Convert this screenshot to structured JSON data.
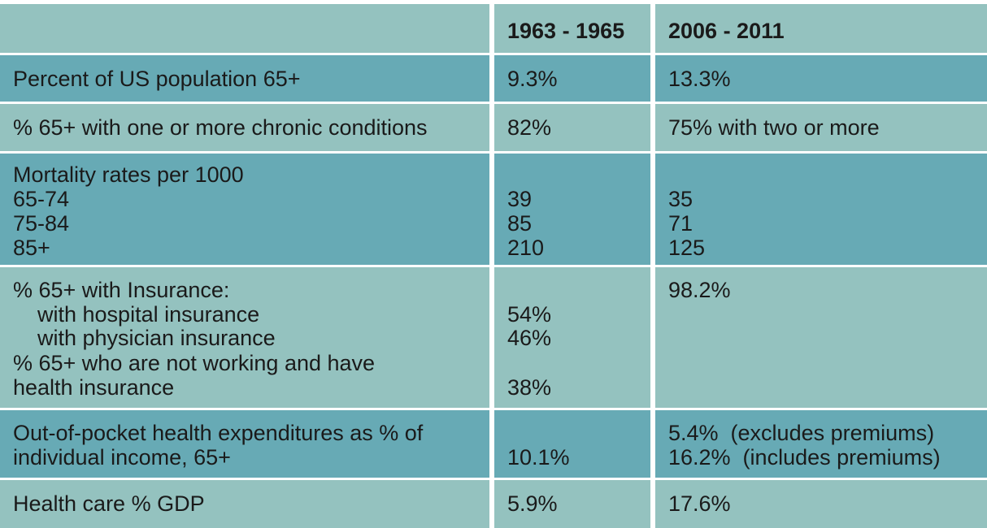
{
  "table": {
    "header": [
      "1963 - 1965",
      "2006 - 2011"
    ],
    "rows": [
      [
        [
          "Percent of US population 65+"
        ],
        [
          "9.3%"
        ],
        [
          "13.3%"
        ]
      ],
      [
        [
          "% 65+ with one or more chronic conditions"
        ],
        [
          "82%"
        ],
        [
          "75% with two or more"
        ]
      ],
      [
        [
          "Mortality rates per 1000",
          "65-74",
          "75-84",
          "85+"
        ],
        [
          "39",
          "85",
          "210"
        ],
        [
          "35",
          "71",
          "125"
        ]
      ],
      [
        [
          "% 65+ with Insurance:",
          "with hospital insurance",
          "with physician insurance",
          "% 65+ who are not working and have",
          "health insurance"
        ],
        [
          "54%",
          "46%",
          "38%"
        ],
        [
          "98.2%"
        ]
      ],
      [
        [
          "Out-of-pocket health expenditures as % of",
          "individual income, 65+"
        ],
        [
          "10.1%"
        ],
        [
          "5.4%  (excludes premiums)",
          "16.2%  (includes premiums)"
        ]
      ],
      [
        [
          "Health care % GDP"
        ],
        [
          "5.9%"
        ],
        [
          "17.6%"
        ]
      ]
    ]
  }
}
